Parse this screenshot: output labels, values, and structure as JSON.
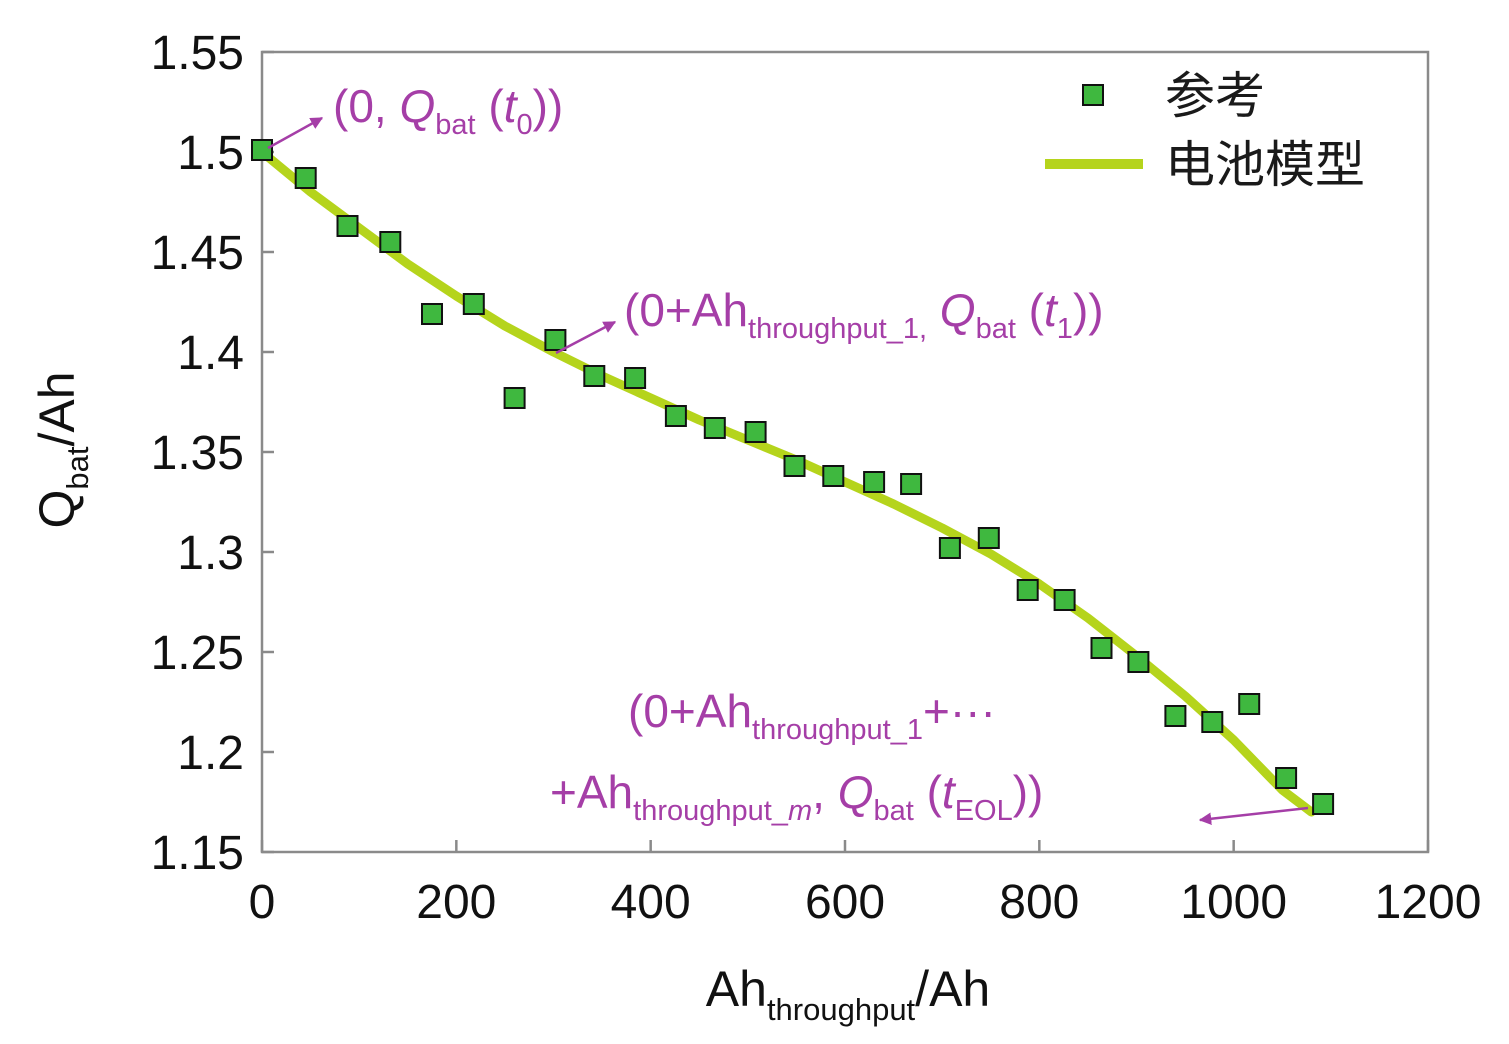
{
  "chart_data": {
    "type": "scatter",
    "xlabel": {
      "main": "Ah",
      "sub": "throughput",
      "tail": "/Ah"
    },
    "ylabel": {
      "main": "Q",
      "sub": "bat",
      "tail": "/Ah"
    },
    "xlim": [
      0,
      1200
    ],
    "ylim": [
      1.15,
      1.55
    ],
    "x_ticks": [
      "0",
      "200",
      "400",
      "600",
      "800",
      "1000",
      "1200"
    ],
    "y_ticks": [
      "1.15",
      "1.2",
      "1.25",
      "1.3",
      "1.35",
      "1.4",
      "1.45",
      "1.5",
      "1.55"
    ],
    "grid": false,
    "legend_position": "top-right",
    "colors": {
      "marker_fill": "#3fb83f",
      "marker_edge": "#111111",
      "model_line": "#b5d41c",
      "annotation": "#a53ea7",
      "axis": "#888888"
    },
    "series": [
      {
        "name": "参考",
        "kind": "scatter",
        "x": [
          0,
          45,
          88,
          132,
          175,
          218,
          260,
          302,
          342,
          384,
          426,
          466,
          508,
          548,
          588,
          630,
          668,
          708,
          748,
          788,
          826,
          864,
          902,
          940,
          978,
          1016,
          1054,
          1092
        ],
        "y": [
          1.501,
          1.487,
          1.463,
          1.455,
          1.419,
          1.424,
          1.377,
          1.406,
          1.388,
          1.387,
          1.368,
          1.362,
          1.36,
          1.343,
          1.338,
          1.335,
          1.334,
          1.302,
          1.307,
          1.281,
          1.276,
          1.252,
          1.245,
          1.218,
          1.215,
          1.224,
          1.187,
          1.174
        ]
      },
      {
        "name": "电池模型",
        "kind": "line",
        "x": [
          0,
          50,
          100,
          150,
          200,
          250,
          300,
          350,
          400,
          450,
          500,
          550,
          600,
          650,
          700,
          750,
          800,
          850,
          900,
          950,
          1000,
          1050,
          1080
        ],
        "y": [
          1.5,
          1.48,
          1.462,
          1.444,
          1.428,
          1.413,
          1.4,
          1.388,
          1.377,
          1.366,
          1.356,
          1.346,
          1.335,
          1.324,
          1.312,
          1.299,
          1.284,
          1.267,
          1.248,
          1.228,
          1.206,
          1.181,
          1.17
        ]
      }
    ],
    "annotations": [
      {
        "id": "a0",
        "text_parts": [
          "(0, ",
          "Q",
          "bat",
          " (",
          "t",
          "0",
          "))"
        ],
        "point": [
          0,
          1.5
        ]
      },
      {
        "id": "a1",
        "text_parts": [
          "(0+Ah",
          "throughput_1,",
          " Q",
          "bat",
          " (",
          "t",
          "1",
          "))"
        ],
        "point": [
          300,
          1.396
        ]
      },
      {
        "id": "a2",
        "line1_parts": [
          "(0+Ah",
          "throughput_1",
          "+···"
        ],
        "line2_parts": [
          "+Ah",
          "throughput_",
          "m",
          ", ",
          "Q",
          "bat",
          " (",
          "t",
          "EOL",
          "))"
        ],
        "point": [
          1080,
          1.171
        ]
      }
    ]
  }
}
